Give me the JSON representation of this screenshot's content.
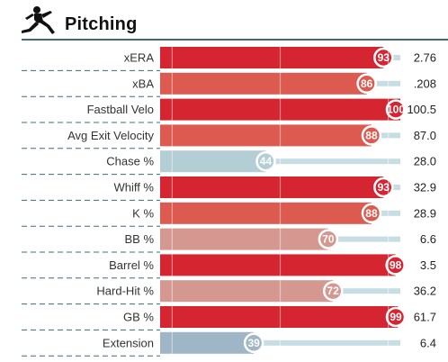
{
  "header": {
    "title": "Pitching",
    "icon": "pitcher-icon"
  },
  "colors": {
    "red": "#d42530",
    "red_mid": "#dc5a50",
    "salmon": "#d49890",
    "blue_light": "#b3ced4",
    "blue_grey": "#9fb6c6",
    "track": "#c8dde3",
    "rule": "#3d6c7a",
    "dash": "#3d6c7a"
  },
  "chart_data": {
    "type": "bar",
    "orientation": "horizontal",
    "title": "Pitching",
    "xlim": [
      0,
      100
    ],
    "categories": [
      "xERA",
      "xBA",
      "Fastball Velo",
      "Avg Exit Velocity",
      "Chase %",
      "Whiff %",
      "K %",
      "BB %",
      "Barrel %",
      "Hard-Hit %",
      "GB %",
      "Extension"
    ],
    "percentiles": [
      93,
      86,
      100,
      88,
      44,
      93,
      88,
      70,
      98,
      72,
      99,
      39
    ],
    "stat_values": [
      "2.76",
      ".208",
      "100.5",
      "87.0",
      "28.0",
      "32.9",
      "28.9",
      "6.6",
      "3.5",
      "36.2",
      "61.7",
      "6.4"
    ]
  }
}
